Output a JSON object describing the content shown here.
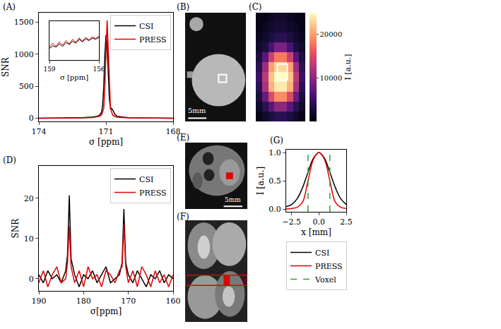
{
  "chart_data": [
    {
      "type": "line",
      "panel": "(A)",
      "xlabel": "σ [ppm]",
      "ylabel": "SNR",
      "xlim": [
        174,
        168
      ],
      "xticks": [
        174,
        171,
        168
      ],
      "ylim": [
        -50,
        1650
      ],
      "yticks": [
        0,
        500,
        1000,
        1500
      ],
      "grid": false,
      "legend": "upper right",
      "series": [
        {
          "name": "CSI",
          "color": "#000000",
          "x": [
            174,
            173,
            172.5,
            172,
            171.6,
            171.4,
            171.3,
            171.2,
            171.15,
            171.1,
            171.05,
            171.0,
            170.95,
            170.9,
            170.85,
            170.8,
            170.75,
            170.7,
            170.6,
            170.5,
            170,
            169,
            168
          ],
          "values": [
            0,
            2,
            5,
            10,
            18,
            30,
            45,
            90,
            200,
            500,
            1000,
            1300,
            1150,
            700,
            300,
            170,
            150,
            130,
            60,
            30,
            8,
            3,
            0
          ]
        },
        {
          "name": "PRESS",
          "color": "#e00000",
          "x": [
            174,
            173,
            172.5,
            172,
            171.6,
            171.4,
            171.3,
            171.2,
            171.1,
            171.05,
            171.0,
            170.95,
            170.9,
            170.85,
            170.8,
            170.7,
            170.6,
            170.5,
            170,
            169,
            168
          ],
          "values": [
            0,
            1,
            3,
            6,
            12,
            20,
            30,
            50,
            150,
            500,
            1100,
            1530,
            1100,
            500,
            150,
            50,
            25,
            15,
            5,
            2,
            0
          ]
        }
      ],
      "inset": {
        "type": "line",
        "xlabel": "σ [ppm]",
        "xlim": [
          159,
          156
        ],
        "xticks": [
          159,
          156
        ],
        "ylim": [
          -30,
          30
        ],
        "tick_labels": "x",
        "series": [
          {
            "color": "#000000",
            "x": [
              159,
              158.8,
              158.6,
              158.4,
              158.2,
              158,
              157.8,
              157.6,
              157.4,
              157.2,
              157,
              156.8,
              156.6,
              156.4,
              156.2,
              156
            ],
            "values": [
              -12,
              -8,
              -10,
              -5,
              -9,
              -3,
              -6,
              -1,
              -4,
              2,
              -2,
              3,
              0,
              4,
              2,
              5
            ]
          },
          {
            "color": "#e00000",
            "x": [
              159,
              158.8,
              158.6,
              158.4,
              158.2,
              158,
              157.8,
              157.6,
              157.4,
              157.2,
              157,
              156.8,
              156.6,
              156.4,
              156.2,
              156
            ],
            "values": [
              -10,
              -4,
              -9,
              -2,
              -7,
              0,
              -5,
              2,
              -3,
              4,
              -1,
              5,
              1,
              6,
              3,
              7
            ]
          }
        ]
      }
    },
    {
      "type": "image",
      "panel": "(B)",
      "scale_bar": "5mm"
    },
    {
      "type": "heatmap",
      "panel": "(C)",
      "values": [
        [
          1000,
          1000,
          1500,
          2000,
          2000,
          1500,
          1000,
          1000
        ],
        [
          1000,
          1500,
          2000,
          2500,
          2500,
          2000,
          1500,
          1000
        ],
        [
          1500,
          2000,
          3000,
          4000,
          4000,
          3000,
          2000,
          1500
        ],
        [
          2000,
          3000,
          6000,
          9000,
          9000,
          6000,
          3000,
          2000
        ],
        [
          3000,
          7000,
          14000,
          18000,
          18000,
          14000,
          7000,
          3000
        ],
        [
          4000,
          11000,
          20000,
          23000,
          23000,
          20000,
          11000,
          4000
        ],
        [
          5000,
          13000,
          22000,
          25000,
          25000,
          22000,
          13000,
          5000
        ],
        [
          4000,
          12000,
          21000,
          24000,
          24000,
          21000,
          12000,
          4000
        ],
        [
          3000,
          8000,
          15000,
          19000,
          19000,
          15000,
          8000,
          3000
        ],
        [
          2000,
          4000,
          7000,
          10000,
          10000,
          7000,
          4000,
          2000
        ],
        [
          1000,
          2000,
          3000,
          4000,
          4000,
          3000,
          2000,
          1000
        ]
      ],
      "tick_labels": false,
      "colorbar": {
        "range": [
          0,
          25000
        ],
        "ticks": [
          10000,
          20000
        ],
        "title": "I [a.u.]"
      }
    },
    {
      "type": "line",
      "panel": "(D)",
      "xlabel": "σ[ppm]",
      "ylabel": "SNR",
      "xlim": [
        190,
        160
      ],
      "xticks": [
        190,
        180,
        170,
        160
      ],
      "ylim": [
        -3,
        28
      ],
      "yticks": [
        0,
        10,
        20
      ],
      "grid": false,
      "legend": "upper right",
      "series": [
        {
          "name": "CSI",
          "color": "#000000",
          "x": [
            190,
            189,
            188,
            187,
            186,
            185,
            184,
            183.6,
            183.2,
            182.8,
            182,
            181,
            180,
            179,
            178,
            177,
            176,
            175,
            174,
            173,
            172,
            171.4,
            171.0,
            170.6,
            170,
            169,
            168,
            167,
            166,
            165,
            164,
            163,
            162,
            161,
            160
          ],
          "values": [
            1,
            -1,
            2,
            0,
            1,
            -1,
            2,
            6,
            20.7,
            5,
            1,
            -2,
            1,
            0,
            2,
            -1,
            1,
            3,
            -1,
            0,
            1,
            4,
            17.3,
            4,
            1,
            -1,
            2,
            0,
            -2,
            1,
            0,
            2,
            -1,
            1,
            0
          ]
        },
        {
          "name": "PRESS",
          "color": "#e00000",
          "x": [
            190,
            189,
            188,
            187,
            186,
            185,
            184,
            183.6,
            183.2,
            182.8,
            182,
            181,
            180,
            179,
            178,
            177,
            176,
            175,
            174,
            173,
            172,
            171.4,
            171.0,
            170.6,
            170,
            169,
            168,
            167,
            166,
            165,
            164,
            163,
            162,
            161,
            160
          ],
          "values": [
            -1,
            2,
            -2,
            1,
            3,
            -1,
            0,
            4,
            13,
            3,
            -1,
            2,
            -2,
            3,
            0,
            1,
            -2,
            2,
            1,
            -1,
            2,
            3,
            13.5,
            3,
            -1,
            2,
            -2,
            3,
            1,
            -2,
            2,
            -1,
            1,
            -2,
            1
          ]
        }
      ]
    },
    {
      "type": "image",
      "panel": "(E)",
      "scale_bar": "5mm"
    },
    {
      "type": "image",
      "panel": "(F)"
    },
    {
      "type": "line",
      "panel": "(G)",
      "xlabel": "x [mm]",
      "ylabel": "I [a.u.]",
      "xlim": [
        -3,
        2.5
      ],
      "xticks": [
        {
          "value": -2.5,
          "label": "−2.5"
        },
        {
          "value": 0,
          "label": "0.0"
        },
        {
          "value": 2.5,
          "label": "2.5"
        }
      ],
      "ylim": [
        -0.05,
        1.05
      ],
      "yticks": [
        {
          "value": 0,
          "label": "0.0"
        },
        {
          "value": 0.5,
          "label": "0.5"
        },
        {
          "value": 1,
          "label": "1.0"
        }
      ],
      "grid": false,
      "legend": "below",
      "series": [
        {
          "name": "CSI",
          "color": "#000000",
          "x": [
            -3.0,
            -2.5,
            -2.0,
            -1.5,
            -1.0,
            -0.5,
            0,
            0.5,
            1.0,
            1.5,
            2.0,
            2.5
          ],
          "values": [
            0.04,
            0.08,
            0.18,
            0.38,
            0.65,
            0.9,
            1.0,
            0.9,
            0.65,
            0.38,
            0.18,
            0.08
          ]
        },
        {
          "name": "PRESS",
          "color": "#e00000",
          "x": [
            -3.0,
            -2.5,
            -2.0,
            -1.5,
            -1.0,
            -0.5,
            0,
            0.5,
            1.0,
            1.5,
            2.0,
            2.5
          ],
          "values": [
            0,
            0.01,
            0.03,
            0.12,
            0.5,
            0.88,
            1.0,
            0.88,
            0.5,
            0.12,
            0.03,
            0.01
          ]
        },
        {
          "name": "Voxel",
          "color": "#2ca02c",
          "line_style": "dashed",
          "x": [
            -1,
            -1,
            null,
            1,
            1
          ],
          "values": [
            -0.05,
            1.05,
            null,
            -0.05,
            1.05
          ]
        }
      ]
    }
  ]
}
